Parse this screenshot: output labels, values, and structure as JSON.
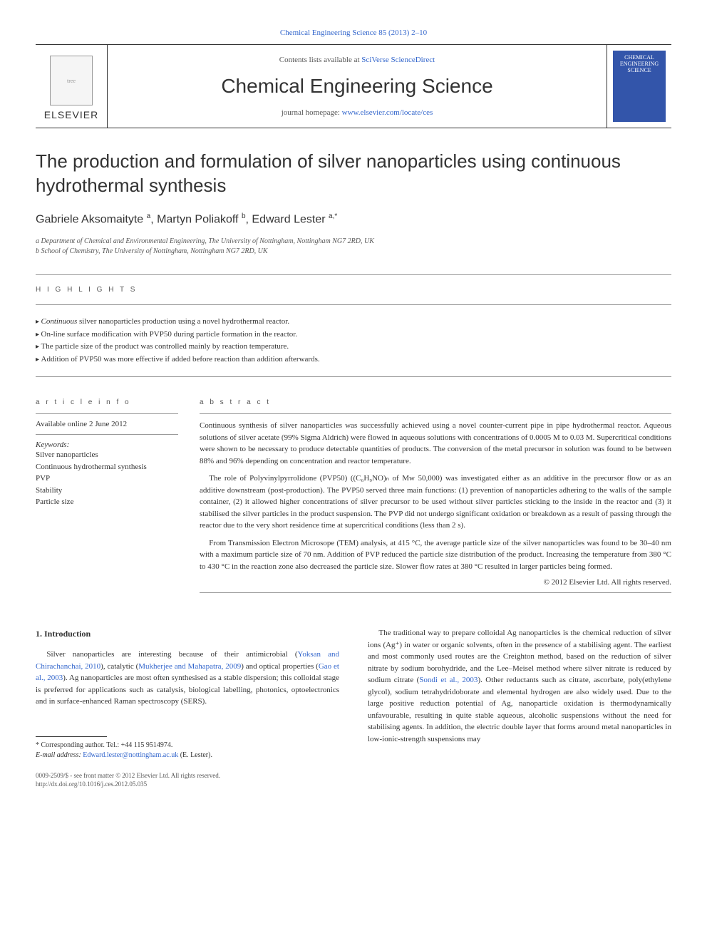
{
  "top_link": "Chemical Engineering Science 85 (2013) 2–10",
  "header": {
    "contents_label": "Contents lists available at ",
    "contents_link": "SciVerse ScienceDirect",
    "journal_title": "Chemical Engineering Science",
    "homepage_label": "journal homepage: ",
    "homepage_url": "www.elsevier.com/locate/ces",
    "publisher": "ELSEVIER",
    "cover_text": "CHEMICAL ENGINEERING SCIENCE"
  },
  "article": {
    "title": "The production and formulation of silver nanoparticles using continuous hydrothermal synthesis",
    "authors_html": "Gabriele Aksomaityte <sup>a</sup>, Martyn Poliakoff <sup>b</sup>, Edward Lester <sup>a,*</sup>",
    "affiliations": [
      "a Department of Chemical and Environmental Engineering, The University of Nottingham, Nottingham NG7 2RD, UK",
      "b School of Chemistry, The University of Nottingham, Nottingham NG7 2RD, UK"
    ]
  },
  "highlights": {
    "heading": "H I G H L I G H T S",
    "items": [
      "Continuous silver nanoparticles production using a novel hydrothermal reactor.",
      "On-line surface modification with PVP50 during particle formation in the reactor.",
      "The particle size of the product was controlled mainly by reaction temperature.",
      "Addition of PVP50 was more effective if added before reaction than addition afterwards."
    ]
  },
  "article_info": {
    "heading": "a r t i c l e  i n f o",
    "pub_date": "Available online 2 June 2012",
    "keywords_label": "Keywords:",
    "keywords": [
      "Silver nanoparticles",
      "Continuous hydrothermal synthesis",
      "PVP",
      "Stability",
      "Particle size"
    ]
  },
  "abstract": {
    "heading": "a b s t r a c t",
    "paragraphs": [
      "Continuous synthesis of silver nanoparticles was successfully achieved using a novel counter-current pipe in pipe hydrothermal reactor. Aqueous solutions of silver acetate (99% Sigma Aldrich) were flowed in aqueous solutions with concentrations of 0.0005 M to 0.03 M. Supercritical conditions were shown to be necessary to produce detectable quantities of products. The conversion of the metal precursor in solution was found to be between 88% and 96% depending on concentration and reactor temperature.",
      "The role of Polyvinylpyrrolidone (PVP50) ((C₆H₉NO)ₙ of Mw 50,000) was investigated either as an additive in the precursor flow or as an additive downstream (post-production). The PVP50 served three main functions: (1) prevention of nanoparticles adhering to the walls of the sample container, (2) it allowed higher concentrations of silver precursor to be used without silver particles sticking to the inside in the reactor and (3) it stabilised the silver particles in the product suspension. The PVP did not undergo significant oxidation or breakdown as a result of passing through the reactor due to the very short residence time at supercritical conditions (less than 2 s).",
      "From Transmission Electron Microsope (TEM) analysis, at 415 °C, the average particle size of the silver nanoparticles was found to be 30–40 nm with a maximum particle size of 70 nm. Addition of PVP reduced the particle size distribution of the product. Increasing the temperature from 380 °C to 430 °C in the reaction zone also decreased the particle size. Slower flow rates at 380 °C resulted in larger particles being formed."
    ],
    "copyright": "© 2012 Elsevier Ltd. All rights reserved."
  },
  "intro": {
    "heading": "1. Introduction",
    "left_para": "Silver nanoparticles are interesting because of their antimicrobial (Yoksan and Chirachanchai, 2010), catalytic (Mukherjee and Mahapatra, 2009) and optical properties (Gao et al., 2003). Ag nanoparticles are most often synthesised as a stable dispersion; this colloidal stage is preferred for applications such as catalysis, biological labelling, photonics, optoelectronics and in surface-enhanced Raman spectroscopy (SERS).",
    "right_para": "The traditional way to prepare colloidal Ag nanoparticles is the chemical reduction of silver ions (Ag⁺) in water or organic solvents, often in the presence of a stabilising agent. The earliest and most commonly used routes are the Creighton method, based on the reduction of silver nitrate by sodium borohydride, and the Lee–Meisel method where silver nitrate is reduced by sodium citrate (Sondi et al., 2003). Other reductants such as citrate, ascorbate, poly(ethylene glycol), sodium tetrahydridoborate and elemental hydrogen are also widely used. Due to the large positive reduction potential of Ag, nanoparticle oxidation is thermodynamically unfavourable, resulting in quite stable aqueous, alcoholic suspensions without the need for stabilising agents. In addition, the electric double layer that forms around metal nanoparticles in low-ionic-strength suspensions may"
  },
  "footer": {
    "corresponding": "* Corresponding author. Tel.: +44 115 9514974.",
    "email_label": "E-mail address: ",
    "email": "Edward.lester@nottingham.ac.uk",
    "email_attribution": " (E. Lester).",
    "issn": "0009-2509/$ - see front matter © 2012 Elsevier Ltd. All rights reserved.",
    "doi": "http://dx.doi.org/10.1016/j.ces.2012.05.035"
  },
  "colors": {
    "link": "#3366cc",
    "text": "#333333",
    "muted": "#555555",
    "border": "#999999",
    "cover_bg": "#3355aa"
  }
}
